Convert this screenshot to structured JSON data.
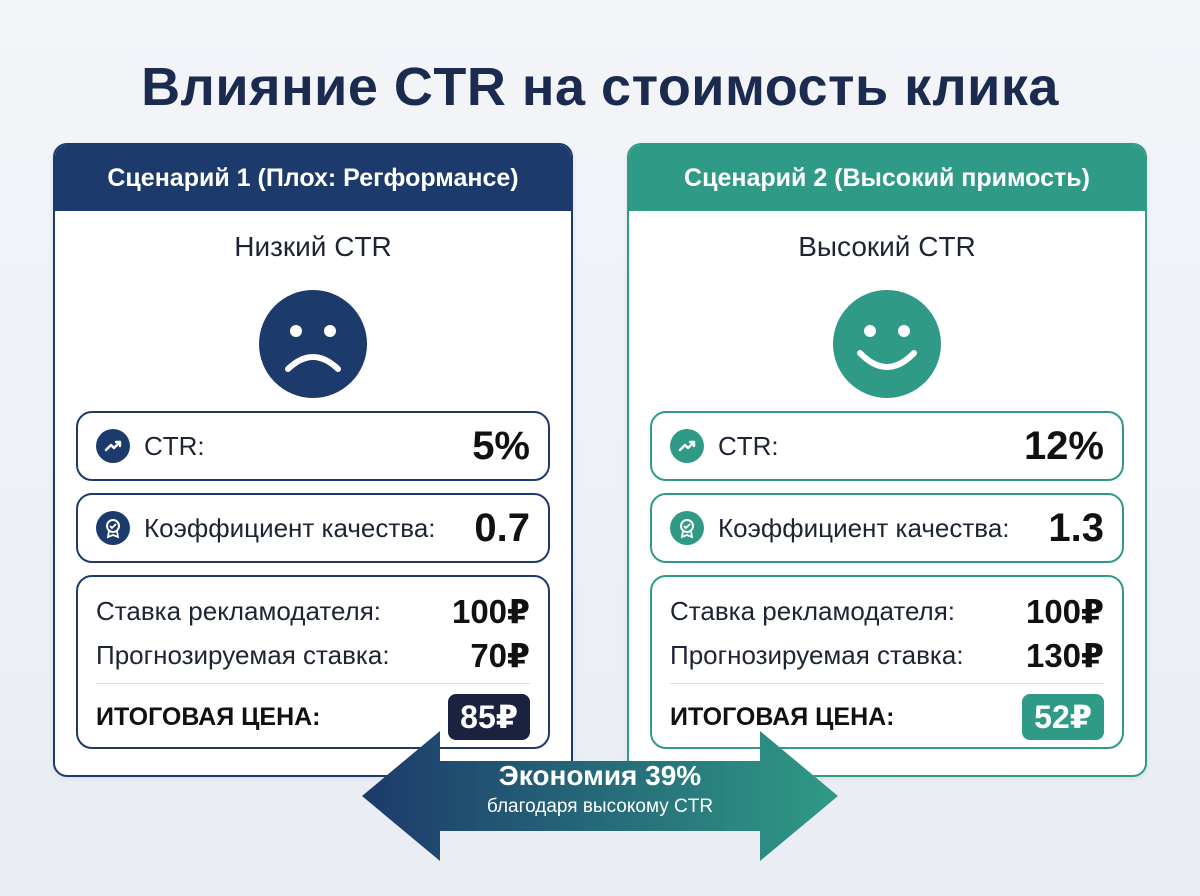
{
  "title": "Влияние CTR на стоимость клика",
  "colors": {
    "left_accent": "#1c3a6b",
    "right_accent": "#2f9a86",
    "dark_badge": "#1a2240"
  },
  "left": {
    "header": "Сценарий 1 (Плох: Регформансе)",
    "subtitle": "Низкий CTR",
    "face_icon": "sad-face-icon",
    "ctr_label": "CTR:",
    "ctr_value": "5%",
    "quality_label": "Коэффициент качества:",
    "quality_value": "0.7",
    "bid_label": "Ставка рекламодателя:",
    "bid_value": "100₽",
    "forecast_label": "Прогнозируемая ставка:",
    "forecast_value": "70₽",
    "total_label": "ИТОГОВАЯ ЦЕНА:",
    "total_value": "85₽"
  },
  "right": {
    "header": "Сценарий 2 (Высокий примость)",
    "subtitle": "Высокий CTR",
    "face_icon": "happy-face-icon",
    "ctr_label": "CTR:",
    "ctr_value": "12%",
    "quality_label": "Коэффициент качества:",
    "quality_value": "1.3",
    "bid_label": "Ставка рекламодателя:",
    "bid_value": "100₽",
    "forecast_label": "Прогнозируемая ставка:",
    "forecast_value": "130₽",
    "total_label": "ИТОГОВАЯ ЦЕНА:",
    "total_value": "52₽"
  },
  "savings": {
    "main": "Экономия 39%",
    "sub": "благодаря высокому CTR"
  }
}
